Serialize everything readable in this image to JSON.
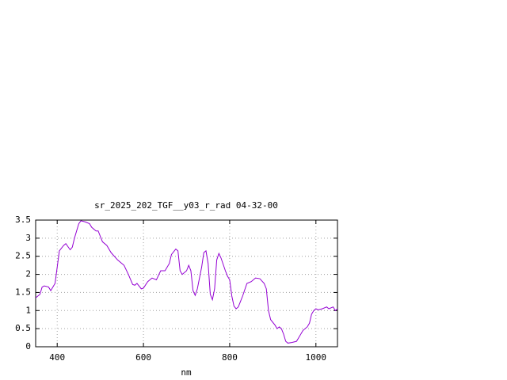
{
  "chart_data": {
    "type": "line",
    "title": "sr_2025_202_TGF__y03_r_rad 04-32-00",
    "x_label": "nm",
    "x": [
      350,
      360,
      365,
      370,
      380,
      385,
      395,
      400,
      405,
      415,
      420,
      430,
      435,
      440,
      450,
      455,
      465,
      475,
      480,
      490,
      495,
      505,
      515,
      525,
      540,
      550,
      555,
      565,
      575,
      580,
      585,
      595,
      600,
      610,
      620,
      630,
      640,
      650,
      660,
      665,
      675,
      680,
      685,
      690,
      700,
      705,
      710,
      715,
      720,
      725,
      735,
      740,
      745,
      750,
      755,
      760,
      765,
      770,
      775,
      780,
      790,
      795,
      800,
      805,
      810,
      815,
      820,
      830,
      840,
      850,
      860,
      870,
      880,
      885,
      890,
      895,
      905,
      910,
      915,
      920,
      925,
      930,
      935,
      945,
      955,
      960,
      970,
      980,
      985,
      990,
      995,
      1000,
      1005,
      1015,
      1025,
      1030,
      1040,
      1045,
      1050
    ],
    "series": [
      {
        "color": "#9400d3",
        "values": [
          1.35,
          1.45,
          1.65,
          1.68,
          1.65,
          1.55,
          1.75,
          2.2,
          2.65,
          2.8,
          2.85,
          2.68,
          2.75,
          3.0,
          3.4,
          3.48,
          3.45,
          3.4,
          3.3,
          3.2,
          3.2,
          2.9,
          2.8,
          2.6,
          2.4,
          2.3,
          2.25,
          2.0,
          1.72,
          1.7,
          1.75,
          1.6,
          1.62,
          1.8,
          1.9,
          1.85,
          2.1,
          2.1,
          2.3,
          2.55,
          2.7,
          2.65,
          2.1,
          2.0,
          2.1,
          2.25,
          2.1,
          1.55,
          1.42,
          1.6,
          2.2,
          2.6,
          2.65,
          2.3,
          1.45,
          1.3,
          1.6,
          2.4,
          2.58,
          2.45,
          2.1,
          1.95,
          1.85,
          1.4,
          1.12,
          1.05,
          1.1,
          1.4,
          1.75,
          1.8,
          1.9,
          1.88,
          1.75,
          1.6,
          1.0,
          0.75,
          0.6,
          0.5,
          0.55,
          0.5,
          0.35,
          0.15,
          0.1,
          0.12,
          0.15,
          0.25,
          0.45,
          0.55,
          0.65,
          0.9,
          1.0,
          1.05,
          1.02,
          1.05,
          1.1,
          1.05,
          1.1,
          1.0,
          1.05
        ]
      }
    ],
    "xlim": [
      350,
      1050
    ],
    "xticks": [
      400,
      600,
      800,
      1000
    ],
    "ylim": [
      0,
      3.5
    ],
    "yticks": [
      0,
      0.5,
      1,
      1.5,
      2,
      2.5,
      3,
      3.5
    ],
    "grid": true
  }
}
